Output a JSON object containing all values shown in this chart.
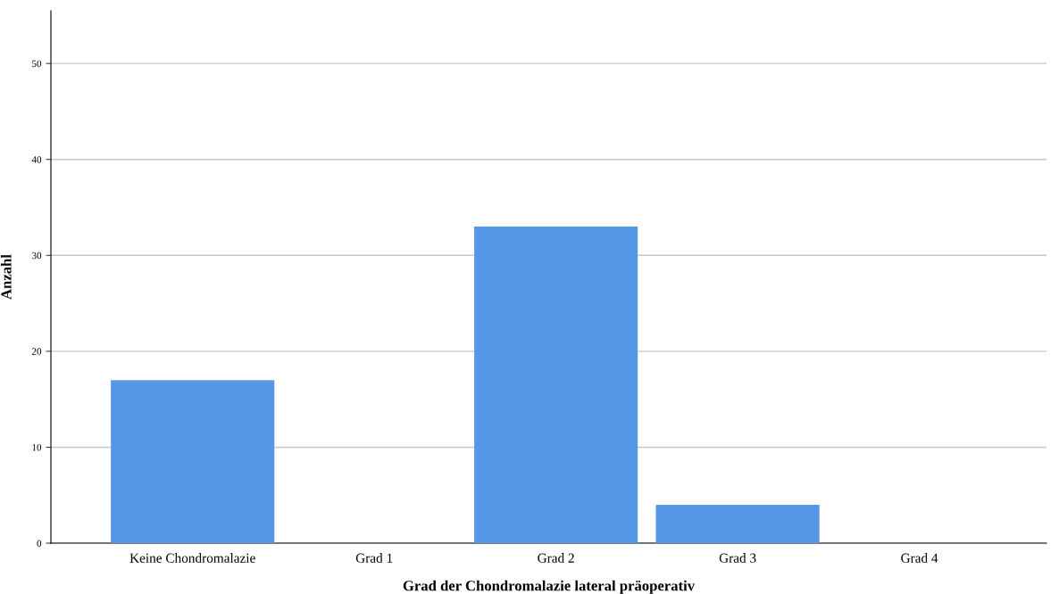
{
  "chart_data": {
    "type": "bar",
    "xlabel": "Grad der Chondromalazie lateral präoperativ",
    "ylabel": "Anzahl",
    "categories": [
      "Keine Chondromalazie",
      "Grad 1",
      "Grad 2",
      "Grad 3",
      "Grad 4"
    ],
    "values": [
      17,
      0,
      33,
      4,
      0
    ],
    "color": "#5597e6",
    "ylim": [
      0,
      55.5
    ],
    "yticks": [
      0,
      10,
      20,
      30,
      40,
      50
    ],
    "grid": "y",
    "legend": false
  }
}
